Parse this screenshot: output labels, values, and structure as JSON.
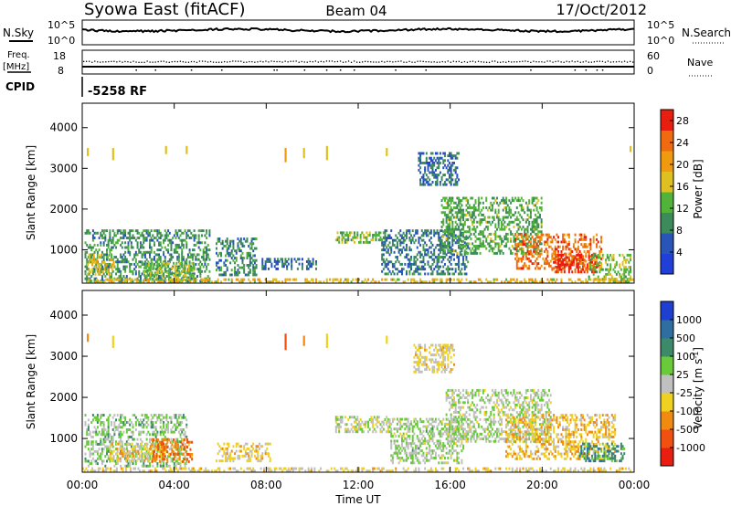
{
  "header": {
    "station": "Syowa East (fitACF)",
    "beam": "Beam 04",
    "date": "17/Oct/2012"
  },
  "summary": {
    "nsky_label": "N.Sky",
    "nsky_ticks": [
      "10^5",
      "10^0"
    ],
    "nsearch_label": "N.Search",
    "nsearch_ticks": [
      "10^5",
      "10^0"
    ],
    "freq_label": "Freq.",
    "freq_unit": "[MHz]",
    "freq_ticks": [
      "18",
      "8"
    ],
    "nave_label": "Nave",
    "nave_ticks": [
      "60",
      "0"
    ],
    "cpid_label": "CPID",
    "cpid_value": "-5258 RF"
  },
  "x_axis": {
    "label": "Time UT",
    "ticks": [
      "00:00",
      "04:00",
      "08:00",
      "12:00",
      "16:00",
      "20:00",
      "00:00"
    ]
  },
  "colors": {
    "power": [
      "#1f3fd8",
      "#2a55b8",
      "#3d8a5a",
      "#52b33a",
      "#e0c020",
      "#f09a10",
      "#f06a10",
      "#e81e10"
    ],
    "velocity": [
      "#1e3fd0",
      "#2f6fa0",
      "#3d8a6a",
      "#6acb3a",
      "#c0c0c0",
      "#f0d020",
      "#f08a10",
      "#f05010",
      "#e81e10"
    ]
  },
  "chart_data": [
    {
      "type": "heatmap",
      "name": "power",
      "ylabel": "Slant Range [km]",
      "xlabel": "",
      "x_ticks": [
        "00:00",
        "04:00",
        "08:00",
        "12:00",
        "16:00",
        "20:00",
        "00:00"
      ],
      "y_ticks": [
        "1000",
        "2000",
        "3000",
        "4000"
      ],
      "xlim_hours": [
        0,
        24
      ],
      "ylim_km": [
        180,
        4600
      ],
      "colorbar": {
        "label": "Power [dB]",
        "ticks": [
          "4",
          "8",
          "12",
          "16",
          "20",
          "24",
          "28"
        ],
        "range": [
          0,
          30
        ]
      },
      "regions": [
        {
          "t": [
            0.1,
            5.6
          ],
          "r": [
            200,
            1500
          ],
          "value": 10
        },
        {
          "t": [
            0.2,
            1.4
          ],
          "r": [
            350,
            900
          ],
          "value": 17
        },
        {
          "t": [
            2.6,
            4.9
          ],
          "r": [
            200,
            700
          ],
          "value": 14
        },
        {
          "t": [
            5.8,
            7.6
          ],
          "r": [
            350,
            1300
          ],
          "value": 9
        },
        {
          "t": [
            7.8,
            10.2
          ],
          "r": [
            500,
            800
          ],
          "value": 7
        },
        {
          "t": [
            11.0,
            13.2
          ],
          "r": [
            1150,
            1450
          ],
          "value": 13
        },
        {
          "t": [
            13.0,
            16.8
          ],
          "r": [
            400,
            1500
          ],
          "value": 8
        },
        {
          "t": [
            14.6,
            16.4
          ],
          "r": [
            2600,
            3400
          ],
          "value": 7
        },
        {
          "t": [
            15.6,
            20.0
          ],
          "r": [
            900,
            2300
          ],
          "value": 12
        },
        {
          "t": [
            18.8,
            22.6
          ],
          "r": [
            500,
            1400
          ],
          "value": 24
        },
        {
          "t": [
            20.4,
            22.4
          ],
          "r": [
            400,
            900
          ],
          "value": 27
        },
        {
          "t": [
            22.0,
            23.9
          ],
          "r": [
            200,
            900
          ],
          "value": 14
        },
        {
          "t": [
            0.0,
            24.0
          ],
          "r": [
            180,
            300
          ],
          "value": 18
        }
      ],
      "far_range_echoes": [
        {
          "t": 0.2,
          "r": [
            3300,
            3500
          ],
          "value": 17
        },
        {
          "t": 1.3,
          "r": [
            3200,
            3500
          ],
          "value": 18
        },
        {
          "t": 3.6,
          "r": [
            3350,
            3550
          ],
          "value": 16
        },
        {
          "t": 4.5,
          "r": [
            3350,
            3550
          ],
          "value": 18
        },
        {
          "t": 8.8,
          "r": [
            3150,
            3500
          ],
          "value": 20
        },
        {
          "t": 9.6,
          "r": [
            3250,
            3500
          ],
          "value": 18
        },
        {
          "t": 10.6,
          "r": [
            3200,
            3550
          ],
          "value": 18
        },
        {
          "t": 13.2,
          "r": [
            3300,
            3500
          ],
          "value": 16
        },
        {
          "t": 23.8,
          "r": [
            3400,
            3550
          ],
          "value": 17
        }
      ]
    },
    {
      "type": "heatmap",
      "name": "velocity",
      "ylabel": "Slant Range [km]",
      "xlabel": "Time UT",
      "x_ticks": [
        "00:00",
        "04:00",
        "08:00",
        "12:00",
        "16:00",
        "20:00",
        "00:00"
      ],
      "y_ticks": [
        "1000",
        "2000",
        "3000",
        "4000"
      ],
      "xlim_hours": [
        0,
        24
      ],
      "ylim_km": [
        180,
        4600
      ],
      "colorbar": {
        "label": "Velocity [m s^-1]",
        "ticks": [
          "1000",
          "500",
          "100",
          "25",
          "-25",
          "-100",
          "-500",
          "-1000"
        ],
        "range": [
          -1200,
          1200
        ]
      },
      "regions": [
        {
          "t": [
            0.1,
            4.6
          ],
          "r": [
            300,
            1600
          ],
          "value": 200
        },
        {
          "t": [
            1.2,
            3.6
          ],
          "r": [
            400,
            900
          ],
          "value": -250
        },
        {
          "t": [
            3.0,
            4.8
          ],
          "r": [
            400,
            1000
          ],
          "value": -600
        },
        {
          "t": [
            5.8,
            8.2
          ],
          "r": [
            400,
            900
          ],
          "value": -200
        },
        {
          "t": [
            11.0,
            13.4
          ],
          "r": [
            1150,
            1550
          ],
          "value": 0
        },
        {
          "t": [
            13.4,
            16.6
          ],
          "r": [
            400,
            1500
          ],
          "value": 120
        },
        {
          "t": [
            14.4,
            16.2
          ],
          "r": [
            2600,
            3300
          ],
          "value": -150
        },
        {
          "t": [
            15.8,
            20.4
          ],
          "r": [
            900,
            2200
          ],
          "value": 80
        },
        {
          "t": [
            18.4,
            23.2
          ],
          "r": [
            500,
            1600
          ],
          "value": -300
        },
        {
          "t": [
            21.6,
            23.6
          ],
          "r": [
            400,
            900
          ],
          "value": 500
        },
        {
          "t": [
            0.0,
            24.0
          ],
          "r": [
            180,
            300
          ],
          "value": -150
        }
      ],
      "far_range_echoes": [
        {
          "t": 0.2,
          "r": [
            3350,
            3550
          ],
          "value": -400
        },
        {
          "t": 1.3,
          "r": [
            3200,
            3500
          ],
          "value": -150
        },
        {
          "t": 8.8,
          "r": [
            3150,
            3550
          ],
          "value": -800
        },
        {
          "t": 9.6,
          "r": [
            3250,
            3500
          ],
          "value": -600
        },
        {
          "t": 10.6,
          "r": [
            3200,
            3550
          ],
          "value": -150
        },
        {
          "t": 13.2,
          "r": [
            3300,
            3500
          ],
          "value": -300
        }
      ]
    }
  ]
}
